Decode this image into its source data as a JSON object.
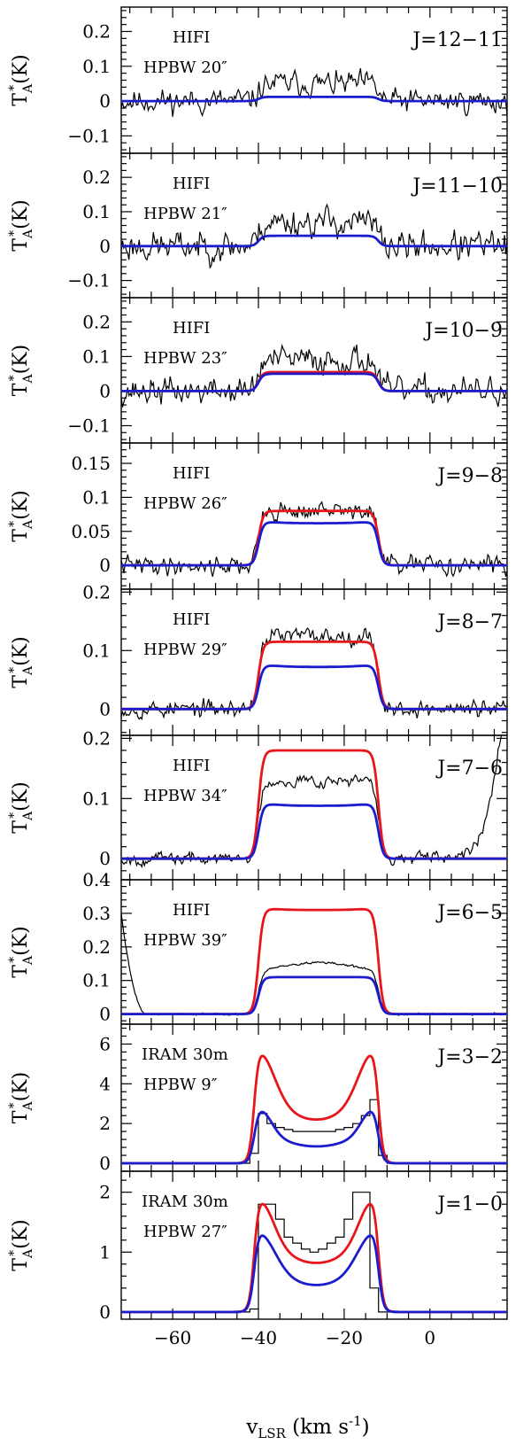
{
  "figure": {
    "xlabel": "v_LSR (km s^-1)",
    "xlabel_main": "v",
    "xlabel_sub": "LSR",
    "xlabel_rest": " (km s",
    "xlabel_exp": "-1",
    "xlabel_close": ")",
    "ylabel_main": "T",
    "ylabel_sup": "*",
    "ylabel_sub": "A",
    "ylabel_rest": "(K)"
  },
  "colors": {
    "observed": "#000000",
    "model_red": "#e8151b",
    "model_blue": "#1c1ccf"
  },
  "chart_data": [
    {
      "type": "line",
      "id": "p1",
      "instrument": "HIFI",
      "beam": "HPBW 20″",
      "transition": "J=12−11",
      "xlim": [
        -72,
        18
      ],
      "ylim": [
        -0.15,
        0.27
      ],
      "xticks": [
        -60,
        -40,
        -20,
        0
      ],
      "yticks": [
        -0.1,
        0,
        0.1,
        0.2
      ],
      "ytick_labels": [
        "−0.1",
        "0",
        "0.1",
        "0.2"
      ],
      "observed": {
        "style": "noisy",
        "v1": -40,
        "v2": -12,
        "level": 0.05,
        "noise": 0.04,
        "baseline": 0,
        "seed": 11
      },
      "models": [
        {
          "color": "blue",
          "v1": -40,
          "v2": -12,
          "peak": 0.012,
          "horn": 0.0
        }
      ]
    },
    {
      "type": "line",
      "id": "p2",
      "instrument": "HIFI",
      "beam": "HPBW 21″",
      "transition": "J=11−10",
      "xlim": [
        -72,
        18
      ],
      "ylim": [
        -0.15,
        0.27
      ],
      "xticks": [
        -60,
        -40,
        -20,
        0
      ],
      "yticks": [
        -0.1,
        0,
        0.1,
        0.2
      ],
      "ytick_labels": [
        "−0.1",
        "0",
        "0.1",
        "0.2"
      ],
      "observed": {
        "style": "noisy",
        "v1": -40,
        "v2": -12,
        "level": 0.07,
        "noise": 0.05,
        "baseline": 0,
        "seed": 23
      },
      "models": [
        {
          "color": "blue",
          "v1": -40,
          "v2": -12,
          "peak": 0.03,
          "horn": 0.0
        }
      ]
    },
    {
      "type": "line",
      "id": "p3",
      "instrument": "HIFI",
      "beam": "HPBW 23″",
      "transition": "J=10−9",
      "xlim": [
        -72,
        18
      ],
      "ylim": [
        -0.15,
        0.27
      ],
      "xticks": [
        -60,
        -40,
        -20,
        0
      ],
      "yticks": [
        -0.1,
        0,
        0.1,
        0.2
      ],
      "ytick_labels": [
        "−0.1",
        "0",
        "0.1",
        "0.2"
      ],
      "observed": {
        "style": "noisy",
        "v1": -40,
        "v2": -12,
        "level": 0.09,
        "noise": 0.045,
        "baseline": 0,
        "seed": 37
      },
      "models": [
        {
          "color": "red",
          "v1": -40,
          "v2": -12,
          "peak": 0.055,
          "horn": 0.0
        },
        {
          "color": "blue",
          "v1": -40,
          "v2": -12,
          "peak": 0.05,
          "horn": 0.0
        }
      ]
    },
    {
      "type": "line",
      "id": "p4",
      "instrument": "HIFI",
      "beam": "HPBW 26″",
      "transition": "J=9−8",
      "xlim": [
        -72,
        18
      ],
      "ylim": [
        -0.035,
        0.18
      ],
      "xticks": [
        -60,
        -40,
        -20,
        0
      ],
      "yticks": [
        0,
        0.05,
        0.1,
        0.15
      ],
      "ytick_labels": [
        "0",
        "0.05",
        "0.1",
        "0.15"
      ],
      "observed": {
        "style": "noisy",
        "v1": -40,
        "v2": -12,
        "level": 0.08,
        "noise": 0.016,
        "baseline": 0,
        "seed": 41
      },
      "models": [
        {
          "color": "red",
          "v1": -40,
          "v2": -12,
          "peak": 0.08,
          "horn": 0.0
        },
        {
          "color": "blue",
          "v1": -40,
          "v2": -12,
          "peak": 0.062,
          "horn": 0.002
        }
      ]
    },
    {
      "type": "line",
      "id": "p5",
      "instrument": "HIFI",
      "beam": "HPBW 29″",
      "transition": "J=8−7",
      "xlim": [
        -72,
        18
      ],
      "ylim": [
        -0.045,
        0.205
      ],
      "xticks": [
        -60,
        -40,
        -20,
        0
      ],
      "yticks": [
        0,
        0.1,
        0.2
      ],
      "ytick_labels": [
        "0",
        "0.1",
        "0.2"
      ],
      "observed": {
        "style": "noisy",
        "v1": -40,
        "v2": -12,
        "level": 0.125,
        "noise": 0.017,
        "baseline": 0,
        "seed": 53
      },
      "models": [
        {
          "color": "red",
          "v1": -40,
          "v2": -12,
          "peak": 0.115,
          "horn": 0.0
        },
        {
          "color": "blue",
          "v1": -40,
          "v2": -12,
          "peak": 0.072,
          "horn": 0.003
        }
      ]
    },
    {
      "type": "line",
      "id": "p6",
      "instrument": "HIFI",
      "beam": "HPBW 34″",
      "transition": "J=7−6",
      "xlim": [
        -72,
        18
      ],
      "ylim": [
        -0.035,
        0.205
      ],
      "xticks": [
        -60,
        -40,
        -20,
        0
      ],
      "yticks": [
        0,
        0.1,
        0.2
      ],
      "ytick_labels": [
        "0",
        "0.1",
        "0.2"
      ],
      "observed": {
        "style": "noisy",
        "v1": -40,
        "v2": -12,
        "level": 0.13,
        "noise": 0.012,
        "baseline": 0,
        "seed": 67,
        "edge_rise": true
      },
      "models": [
        {
          "color": "red",
          "v1": -40,
          "v2": -12,
          "peak": 0.18,
          "horn": 0.0
        },
        {
          "color": "blue",
          "v1": -40,
          "v2": -12,
          "peak": 0.088,
          "horn": 0.003
        }
      ]
    },
    {
      "type": "line",
      "id": "p7",
      "instrument": "HIFI",
      "beam": "HPBW 39″",
      "transition": "J=6−5",
      "xlim": [
        -72,
        18
      ],
      "ylim": [
        -0.03,
        0.4
      ],
      "xticks": [
        -60,
        -40,
        -20,
        0
      ],
      "yticks": [
        0,
        0.1,
        0.2,
        0.3,
        0.4
      ],
      "ytick_labels": [
        "0",
        "0.1",
        "0.2",
        "0.3",
        "0.4"
      ],
      "observed": {
        "style": "smooth",
        "v1": -40,
        "v2": -12,
        "level": 0.13,
        "noise": 0.004,
        "baseline": 0,
        "seed": 79,
        "edge_left": true
      },
      "models": [
        {
          "color": "red",
          "v1": -40,
          "v2": -12,
          "peak": 0.31,
          "horn": 0.004
        },
        {
          "color": "blue",
          "v1": -40,
          "v2": -12,
          "peak": 0.11,
          "horn": 0.0
        }
      ]
    },
    {
      "type": "line",
      "id": "p8",
      "instrument": "IRAM 30m",
      "beam": "HPBW 9″",
      "transition": "J=3−2",
      "xlim": [
        -72,
        18
      ],
      "ylim": [
        -0.4,
        7.0
      ],
      "xticks": [
        -60,
        -40,
        -20,
        0
      ],
      "yticks": [
        0,
        2,
        4,
        6
      ],
      "ytick_labels": [
        "0",
        "2",
        "4",
        "6"
      ],
      "observed": {
        "style": "steps",
        "x": [
          -44,
          -42,
          -40,
          -38,
          -36,
          -34,
          -32,
          -30,
          -28,
          -26,
          -24,
          -22,
          -20,
          -18,
          -16,
          -14,
          -12,
          -10
        ],
        "y": [
          0,
          0.5,
          2.5,
          2.0,
          1.8,
          1.7,
          1.6,
          1.6,
          1.6,
          1.6,
          1.6,
          1.7,
          1.8,
          2.0,
          2.4,
          3.2,
          0.4,
          0
        ]
      },
      "models": [
        {
          "color": "red",
          "v1": -41,
          "v2": -12,
          "peak": 2.2,
          "horn": 3.9,
          "hornwidth": 1.6
        },
        {
          "color": "blue",
          "v1": -41,
          "v2": -12,
          "peak": 0.85,
          "horn": 2.1,
          "hornwidth": 1.2
        }
      ]
    },
    {
      "type": "line",
      "id": "p9",
      "instrument": "IRAM 30m",
      "beam": "HPBW 27″",
      "transition": "J=1−0",
      "xlim": [
        -72,
        18
      ],
      "ylim": [
        -0.12,
        2.35
      ],
      "xticks": [
        -60,
        -40,
        -20,
        0
      ],
      "xtick_labels": [
        "−60",
        "−40",
        "−20",
        "0"
      ],
      "yticks": [
        0,
        1,
        2
      ],
      "ytick_labels": [
        "0",
        "1",
        "2"
      ],
      "observed": {
        "style": "steps",
        "x": [
          -46,
          -44,
          -42,
          -40,
          -38,
          -36,
          -34,
          -32,
          -30,
          -28,
          -26,
          -24,
          -22,
          -20,
          -18,
          -16,
          -14,
          -12,
          -10
        ],
        "y": [
          0,
          0,
          0.05,
          1.8,
          1.8,
          1.55,
          1.25,
          1.15,
          1.05,
          1.0,
          1.05,
          1.15,
          1.25,
          1.55,
          2.0,
          2.0,
          0.4,
          0,
          0
        ]
      },
      "models": [
        {
          "color": "red",
          "v1": -41,
          "v2": -12,
          "peak": 0.82,
          "horn": 1.2,
          "hornwidth": 1.5
        },
        {
          "color": "blue",
          "v1": -41,
          "v2": -12,
          "peak": 0.45,
          "horn": 1.0,
          "hornwidth": 1.7
        }
      ]
    }
  ]
}
